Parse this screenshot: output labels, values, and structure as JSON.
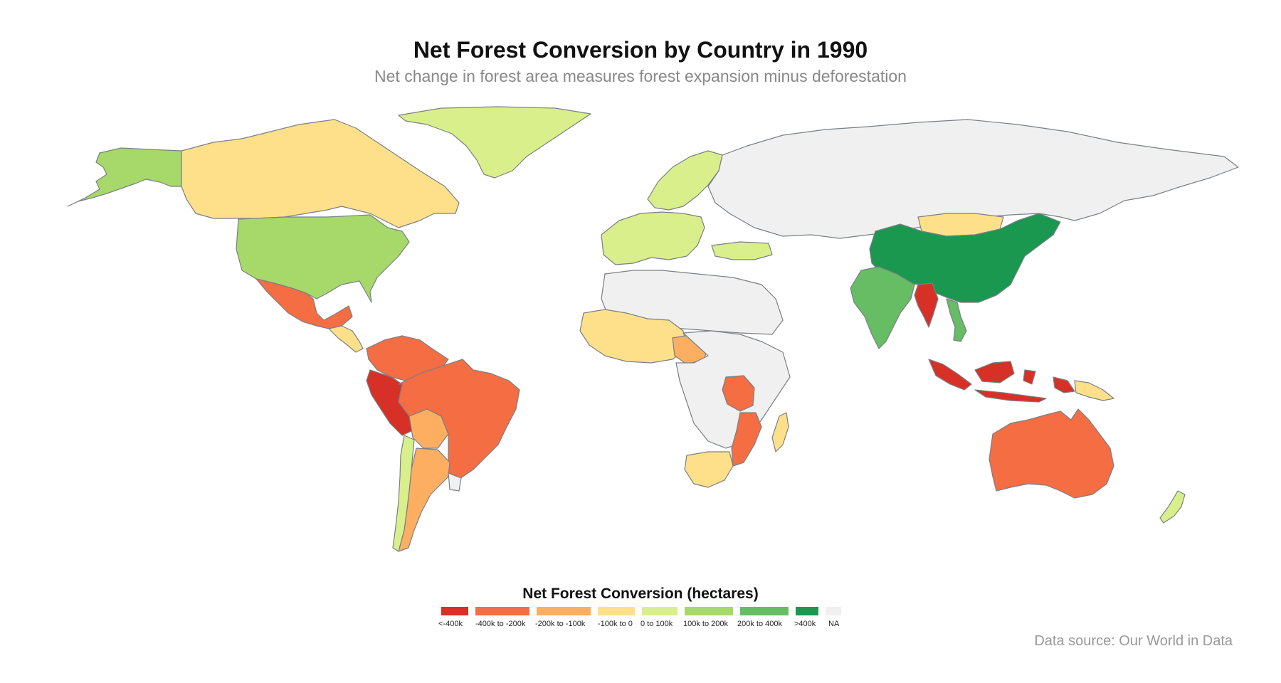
{
  "title": "Net Forest Conversion by Country in 1990",
  "subtitle": "Net change in forest area measures forest expansion minus deforestation",
  "legend": {
    "title": "Net Forest Conversion (hectares)",
    "items": [
      {
        "label": "<-400k",
        "color": "#d73027"
      },
      {
        "label": "-400k to -200k",
        "color": "#f46d43"
      },
      {
        "label": "-200k to -100k",
        "color": "#fdae61"
      },
      {
        "label": "-100k to 0",
        "color": "#fee08b"
      },
      {
        "label": "0 to 100k",
        "color": "#d9ef8b"
      },
      {
        "label": "100k to 200k",
        "color": "#a6d96a"
      },
      {
        "label": "200k to 400k",
        "color": "#66bd63"
      },
      {
        "label": ">400k",
        "color": "#1a9850"
      },
      {
        "label": "NA",
        "color": "#f0f0f0"
      }
    ]
  },
  "source": "Data source: Our World in Data",
  "map_regions": [
    {
      "name": "Alaska",
      "bin": "100k to 200k",
      "color": "#a6d96a"
    },
    {
      "name": "Canada",
      "bin": "-100k to 0",
      "color": "#fee08b"
    },
    {
      "name": "Greenland",
      "bin": "0 to 100k",
      "color": "#d9ef8b"
    },
    {
      "name": "United States",
      "bin": "100k to 200k",
      "color": "#a6d96a"
    },
    {
      "name": "Mexico",
      "bin": "-400k to -200k",
      "color": "#f46d43"
    },
    {
      "name": "Central America",
      "bin": "-100k to 0",
      "color": "#fee08b"
    },
    {
      "name": "Venezuela/Colombia",
      "bin": "-400k to -200k",
      "color": "#f46d43"
    },
    {
      "name": "Brazil",
      "bin": "<-400k",
      "color": "#d73027"
    },
    {
      "name": "Peru",
      "bin": "-200k to -100k",
      "color": "#fdae61"
    },
    {
      "name": "Bolivia",
      "bin": "-400k to -200k",
      "color": "#f46d43"
    },
    {
      "name": "Argentina",
      "bin": "-200k to -100k",
      "color": "#fdae61"
    },
    {
      "name": "Chile",
      "bin": "0 to 100k",
      "color": "#d9ef8b"
    },
    {
      "name": "Uruguay",
      "bin": "NA",
      "color": "#f0f0f0"
    },
    {
      "name": "Scandinavia",
      "bin": "0 to 100k",
      "color": "#d9ef8b"
    },
    {
      "name": "Europe",
      "bin": "0 to 100k",
      "color": "#d9ef8b"
    },
    {
      "name": "Russia",
      "bin": "NA",
      "color": "#f0f0f0"
    },
    {
      "name": "Turkey",
      "bin": "0 to 100k",
      "color": "#d9ef8b"
    },
    {
      "name": "North Africa",
      "bin": "NA",
      "color": "#f0f0f0"
    },
    {
      "name": "West Africa",
      "bin": "-100k to 0",
      "color": "#fee08b"
    },
    {
      "name": "Nigeria",
      "bin": "-200k to -100k",
      "color": "#fdae61"
    },
    {
      "name": "Central Africa",
      "bin": "NA",
      "color": "#f0f0f0"
    },
    {
      "name": "Tanzania",
      "bin": "-400k to -200k",
      "color": "#f46d43"
    },
    {
      "name": "Mozambique",
      "bin": "-400k to -200k",
      "color": "#f46d43"
    },
    {
      "name": "South Africa",
      "bin": "-100k to 0",
      "color": "#fee08b"
    },
    {
      "name": "Madagascar",
      "bin": "-100k to 0",
      "color": "#fee08b"
    },
    {
      "name": "Mongolia",
      "bin": "-100k to 0",
      "color": "#fee08b"
    },
    {
      "name": "China",
      "bin": ">400k",
      "color": "#1a9850"
    },
    {
      "name": "India",
      "bin": "200k to 400k",
      "color": "#66bd63"
    },
    {
      "name": "Myanmar",
      "bin": "<-400k",
      "color": "#d73027"
    },
    {
      "name": "Vietnam",
      "bin": "200k to 400k",
      "color": "#66bd63"
    },
    {
      "name": "Indonesia",
      "bin": "<-400k",
      "color": "#d73027"
    },
    {
      "name": "Papua New Guinea",
      "bin": "-100k to 0",
      "color": "#fee08b"
    },
    {
      "name": "Australia",
      "bin": "-400k to -200k",
      "color": "#f46d43"
    },
    {
      "name": "New Zealand",
      "bin": "0 to 100k",
      "color": "#d9ef8b"
    }
  ]
}
